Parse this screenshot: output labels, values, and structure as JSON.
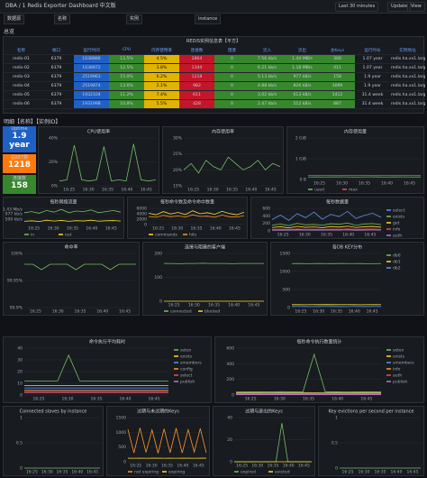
{
  "header": {
    "breadcrumb": "DBA / 1 Redis Exporter Dashboard 中文版",
    "time_range": "Last 30 minutes",
    "update": "Update",
    "view": "View"
  },
  "variables": [
    "数据源",
    "名称",
    "实例",
    "instance"
  ],
  "rows": {
    "overview": "总览",
    "detail": "明细【名称】【实例ID】"
  },
  "table": {
    "title": "REDIS实例信息表【平方】",
    "columns": [
      "名称",
      "端口",
      "运行时间",
      "CPU",
      "内存使用率",
      "连接数",
      "阻塞",
      "流入",
      "流出",
      "总Keys",
      "运行时长",
      "实例地址"
    ],
    "rows": [
      [
        "redis-01",
        "6379",
        "1638886",
        "13.5%",
        "4.5%",
        "2864",
        "0",
        "7.56 kb/s",
        "1.44 MB/s",
        "306",
        "1.07 year",
        "redis.ha.xx1.larg..."
      ],
      [
        "redis-02",
        "6379",
        "1638872",
        "12.5%",
        "3.8%",
        "1344",
        "0",
        "6.21 kb/s",
        "1.18 MB/s",
        "411",
        "1.07 year",
        "redis.ha.xx1.larg..."
      ],
      [
        "redis-03",
        "6379",
        "2519963",
        "15.0%",
        "6.2%",
        "1218",
        "0",
        "5.13 kb/s",
        "977 kB/s",
        "158",
        "1.9 year",
        "redis.ha.xx1.larg..."
      ],
      [
        "redis-04",
        "6379",
        "2519874",
        "13.6%",
        "2.1%",
        "982",
        "0",
        "4.88 kb/s",
        "826 kB/s",
        "3099",
        "1.9 year",
        "redis.ha.xx1.larg..."
      ],
      [
        "redis-05",
        "6379",
        "1932104",
        "11.2%",
        "7.4%",
        "611",
        "0",
        "3.02 kb/s",
        "613 kB/s",
        "1412",
        "31.4 week",
        "redis.ha.xx1.larg..."
      ],
      [
        "redis-06",
        "6379",
        "1931998",
        "10.8%",
        "5.5%",
        "428",
        "0",
        "2.47 kb/s",
        "512 kB/s",
        "887",
        "31.4 week",
        "redis.ha.xx1.larg..."
      ]
    ]
  },
  "stats": [
    {
      "label": "Uptime",
      "value": "1.9 year"
    },
    {
      "label": "总KEY数",
      "value": "1218"
    },
    {
      "label": "连接数",
      "value": "158"
    }
  ],
  "xticks": [
    "16:25",
    "16:30",
    "16:35",
    "16:40",
    "16:45"
  ],
  "panels": [
    {
      "title": "CPU使用率",
      "ylim": [
        0,
        40
      ],
      "yticks": [
        {
          "value": 0,
          "label": "0%"
        },
        {
          "value": 20,
          "label": "20%"
        },
        {
          "value": 40,
          "label": "40%"
        }
      ],
      "legend": "none",
      "series": [
        {
          "name": "cpu",
          "color": "#73bf69",
          "values": [
            4,
            5,
            34,
            5,
            4,
            5,
            33,
            4,
            5,
            4,
            35,
            5,
            4,
            5
          ]
        }
      ]
    },
    {
      "title": "内存使用率",
      "ylim": [
        15,
        30
      ],
      "yticks": [
        {
          "value": 15,
          "label": "15%"
        },
        {
          "value": 20,
          "label": "20%"
        },
        {
          "value": 25,
          "label": "25%"
        },
        {
          "value": 30,
          "label": "30%"
        }
      ],
      "legend": "none",
      "series": [
        {
          "name": "mem",
          "color": "#73bf69",
          "values": [
            20,
            22,
            19,
            23,
            21,
            20,
            24,
            22,
            20,
            21,
            23,
            20,
            22,
            21
          ]
        }
      ]
    },
    {
      "title": "内存使用量",
      "ylim": [
        0,
        2000
      ],
      "yticks": [
        {
          "value": 0,
          "label": "0 B"
        },
        {
          "value": 1000,
          "label": "1 GiB"
        },
        {
          "value": 2000,
          "label": "2 GiB"
        }
      ],
      "legend": "bottom",
      "series": [
        {
          "name": "used",
          "color": "#73bf69",
          "values": [
            120,
            125,
            118,
            122,
            126,
            121,
            119,
            124,
            123,
            120,
            122,
            125,
            121,
            123
          ]
        },
        {
          "name": "max",
          "color": "#f2495c",
          "values": [
            200,
            200,
            200,
            200,
            200,
            200,
            200,
            200,
            200,
            200,
            200,
            200,
            200,
            200
          ]
        }
      ]
    },
    {
      "title": "每秒网络流量",
      "ylim": [
        0,
        1.5
      ],
      "yticks": [
        {
          "value": 0.5,
          "label": "500 kb/s"
        },
        {
          "value": 1,
          "label": "977 kb/s"
        },
        {
          "value": 1.43,
          "label": "1.43 Mb/s"
        }
      ],
      "legend": "bottom",
      "series": [
        {
          "name": "in",
          "color": "#73bf69",
          "values": [
            1.1,
            1.2,
            1.05,
            1.3,
            1.15,
            1.4,
            1.1,
            1.25,
            1.2,
            1.35,
            1.1,
            1.2,
            1.3,
            1.15
          ]
        },
        {
          "name": "out",
          "color": "#fade2a",
          "values": [
            0.3,
            0.35,
            0.28,
            0.4,
            0.32,
            0.38,
            0.3,
            0.36,
            0.33,
            0.4,
            0.31,
            0.35,
            0.37,
            0.32
          ]
        }
      ]
    },
    {
      "title": "每秒命令数及命令命中数量",
      "ylim": [
        0,
        6000
      ],
      "yticks": [
        0,
        2000,
        4000,
        6000
      ],
      "legend": "bottom",
      "series": [
        {
          "name": "commands",
          "color": "#fade2a",
          "values": [
            4200,
            3600,
            4800,
            3900,
            4500,
            3700,
            5100,
            4000,
            4400,
            3800,
            4900,
            4100,
            3600,
            4600
          ]
        },
        {
          "name": "hits",
          "color": "#ff9830",
          "values": [
            3000,
            2700,
            3400,
            2900,
            3200,
            2800,
            3600,
            3000,
            3100,
            2700,
            3500,
            2900,
            2800,
            3300
          ]
        }
      ]
    },
    {
      "title": "每秒数据量",
      "ylim": [
        0,
        600
      ],
      "yticks": [
        0,
        200,
        400,
        600
      ],
      "legend": "right",
      "series": [
        {
          "name": "select",
          "color": "#5794f2",
          "values": [
            300,
            420,
            280,
            460,
            350,
            500,
            310,
            440,
            380,
            520,
            330,
            410,
            470,
            360
          ]
        },
        {
          "name": "exists",
          "color": "#73bf69",
          "values": [
            150,
            180,
            140,
            200,
            160,
            170,
            150,
            190,
            175,
            210,
            145,
            185,
            195,
            165
          ]
        },
        {
          "name": "get",
          "color": "#fade2a",
          "values": [
            90,
            110,
            80,
            120,
            95,
            105,
            85,
            115,
            100,
            125,
            90,
            110,
            118,
            98
          ]
        },
        {
          "name": "info",
          "color": "#f2495c",
          "values": [
            40,
            45,
            38,
            50,
            42,
            44,
            39,
            48,
            43,
            52,
            41,
            46,
            49,
            42
          ]
        },
        {
          "name": "auth",
          "color": "#b877d9",
          "values": [
            20,
            22,
            19,
            25,
            21,
            23,
            20,
            24,
            22,
            26,
            20,
            23,
            24,
            21
          ]
        }
      ]
    },
    {
      "title": "命中率",
      "ylim": [
        99.9,
        100
      ],
      "yticks": [
        {
          "value": 99.9,
          "label": "99.9%"
        },
        {
          "value": 99.95,
          "label": "99.95%"
        },
        {
          "value": 100,
          "label": "100%"
        }
      ],
      "legend": "none",
      "series": [
        {
          "name": "hit",
          "color": "#73bf69",
          "values": [
            99.98,
            99.98,
            99.97,
            99.98,
            99.98,
            99.98,
            99.97,
            99.98,
            99.98,
            99.98,
            99.97,
            99.98,
            99.98,
            99.98
          ]
        }
      ]
    },
    {
      "title": "连接与阻塞的客户端",
      "ylim": [
        0,
        200
      ],
      "yticks": [
        0,
        100,
        200
      ],
      "legend": "bottom",
      "series": [
        {
          "name": "connected",
          "color": "#73bf69",
          "values": [
            158,
            158,
            157,
            158,
            158,
            159,
            158,
            158,
            158,
            157,
            158,
            158,
            158,
            158
          ]
        },
        {
          "name": "blocked",
          "color": "#fade2a",
          "values": [
            0,
            0,
            0,
            0,
            0,
            0,
            0,
            0,
            0,
            0,
            0,
            0,
            0,
            0
          ]
        }
      ]
    },
    {
      "title": "各DB KEY分布",
      "ylim": [
        0,
        1500
      ],
      "yticks": [
        0,
        500,
        1000,
        1500
      ],
      "legend": "right",
      "series": [
        {
          "name": "db0",
          "color": "#73bf69",
          "values": [
            1218,
            1220,
            1215,
            1219,
            1222,
            1218,
            1217,
            1221,
            1219,
            1218,
            1220,
            1216,
            1219,
            1218
          ]
        },
        {
          "name": "db1",
          "color": "#fade2a",
          "values": [
            80,
            82,
            79,
            81,
            80,
            83,
            80,
            81,
            82,
            80,
            79,
            81,
            80,
            82
          ]
        },
        {
          "name": "db2",
          "color": "#5794f2",
          "values": [
            30,
            31,
            30,
            29,
            30,
            31,
            30,
            30,
            29,
            31,
            30,
            30,
            31,
            30
          ]
        }
      ]
    },
    {
      "title": "命令执行平均耗时",
      "ylim": [
        0,
        40
      ],
      "yticks": [
        0,
        10,
        20,
        30,
        40
      ],
      "legend": "right",
      "series": [
        {
          "name": "setex",
          "color": "#73bf69",
          "values": [
            12,
            12,
            12,
            12,
            34,
            12,
            12,
            12,
            12,
            12,
            12,
            12,
            12,
            12
          ]
        },
        {
          "name": "exists",
          "color": "#fade2a",
          "values": [
            8,
            8,
            8,
            8,
            8,
            8,
            8,
            8,
            8,
            8,
            8,
            8,
            8,
            8
          ]
        },
        {
          "name": "smembers",
          "color": "#5794f2",
          "values": [
            6,
            6,
            6,
            6,
            6,
            6,
            6,
            6,
            6,
            6,
            6,
            6,
            6,
            6
          ]
        },
        {
          "name": "config",
          "color": "#ff9830",
          "values": [
            4,
            4,
            4,
            4,
            4,
            4,
            4,
            4,
            4,
            4,
            4,
            4,
            4,
            4
          ]
        },
        {
          "name": "select",
          "color": "#f2495c",
          "values": [
            2,
            2,
            2,
            2,
            2,
            2,
            2,
            2,
            2,
            2,
            2,
            2,
            2,
            2
          ]
        },
        {
          "name": "publish",
          "color": "#b877d9",
          "values": [
            3,
            3,
            3,
            3,
            3,
            3,
            3,
            3,
            3,
            3,
            3,
            3,
            3,
            3
          ]
        }
      ]
    },
    {
      "title": "每秒命令执行数量统计",
      "ylim": [
        0,
        600
      ],
      "yticks": [
        0,
        200,
        400,
        600
      ],
      "legend": "right",
      "series": [
        {
          "name": "setex",
          "color": "#73bf69",
          "values": [
            40,
            42,
            41,
            40,
            43,
            41,
            40,
            520,
            42,
            41,
            40,
            42,
            41,
            40
          ]
        },
        {
          "name": "exists",
          "color": "#fade2a",
          "values": [
            30,
            31,
            30,
            32,
            31,
            30,
            31,
            30,
            32,
            31,
            30,
            31,
            30,
            31
          ]
        },
        {
          "name": "smembers",
          "color": "#5794f2",
          "values": [
            20,
            21,
            20,
            22,
            21,
            20,
            21,
            20,
            22,
            21,
            20,
            21,
            20,
            21
          ]
        },
        {
          "name": "info",
          "color": "#ff9830",
          "values": [
            10,
            10,
            10,
            10,
            10,
            10,
            10,
            10,
            10,
            10,
            10,
            10,
            10,
            10
          ]
        },
        {
          "name": "auth",
          "color": "#f2495c",
          "values": [
            8,
            8,
            8,
            8,
            8,
            8,
            8,
            8,
            8,
            8,
            8,
            8,
            8,
            8
          ]
        },
        {
          "name": "publish",
          "color": "#b877d9",
          "values": [
            5,
            5,
            5,
            5,
            5,
            5,
            5,
            5,
            5,
            5,
            5,
            5,
            5,
            5
          ]
        }
      ]
    },
    {
      "title": "Connected slaves by instance",
      "ylim": [
        0,
        1
      ],
      "yticks": [
        0,
        0.5,
        1
      ],
      "legend": "none",
      "series": [
        {
          "name": "slaves",
          "color": "#73bf69",
          "values": [
            0,
            0,
            0,
            0,
            0,
            0,
            0,
            0,
            0,
            0,
            0,
            0,
            0,
            0
          ]
        }
      ]
    },
    {
      "title": "过期与未过期的Keys",
      "ylim": [
        0,
        1500
      ],
      "yticks": [
        0,
        500,
        1000,
        1500
      ],
      "legend": "bottom",
      "series": [
        {
          "name": "not expiring",
          "color": "#ff9830",
          "values": [
            1100,
            300,
            1150,
            320,
            1080,
            290,
            1120,
            310,
            1140,
            300,
            1090,
            330,
            1130,
            305
          ]
        },
        {
          "name": "expiring",
          "color": "#fade2a",
          "values": [
            120,
            118,
            121,
            119,
            122,
            120,
            118,
            121,
            119,
            120,
            122,
            118,
            121,
            120
          ]
        }
      ]
    },
    {
      "title": "过期与逐出的Keys",
      "ylim": [
        0,
        40
      ],
      "yticks": [
        0,
        20,
        40
      ],
      "legend": "bottom",
      "series": [
        {
          "name": "expired",
          "color": "#73bf69",
          "values": [
            0,
            0,
            0,
            0,
            0,
            0,
            0,
            0,
            35,
            0,
            0,
            0,
            0,
            0
          ]
        },
        {
          "name": "evicted",
          "color": "#fade2a",
          "values": [
            0,
            0,
            0,
            0,
            0,
            0,
            0,
            0,
            0,
            0,
            0,
            0,
            0,
            0
          ]
        }
      ]
    },
    {
      "title": "Key evictions per second per instance",
      "ylim": [
        0,
        1
      ],
      "yticks": [
        0,
        0.5,
        1
      ],
      "legend": "none",
      "series": [
        {
          "name": "evictions",
          "color": "#73bf69",
          "values": [
            0,
            0,
            0,
            0,
            0,
            0,
            0,
            0,
            0,
            0,
            0,
            0,
            0,
            0
          ]
        }
      ]
    }
  ]
}
